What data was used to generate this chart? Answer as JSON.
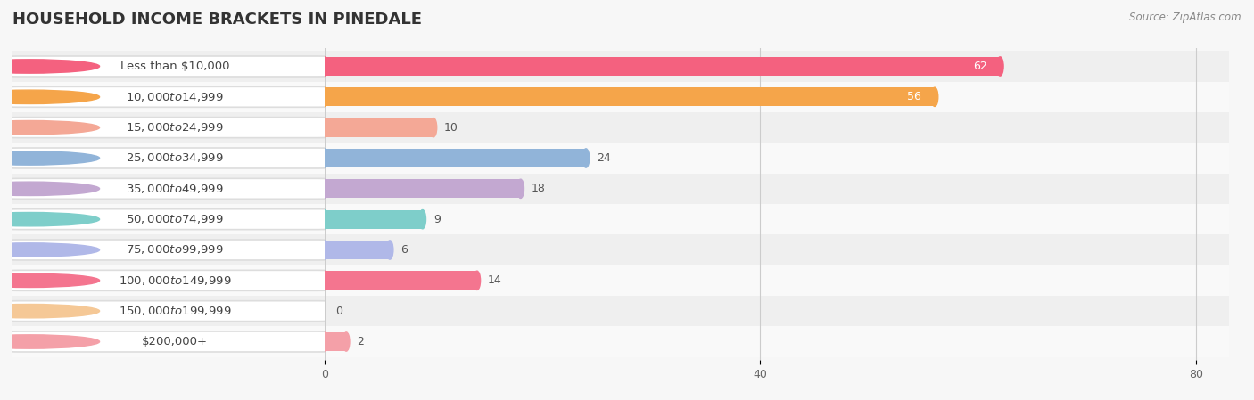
{
  "title": "HOUSEHOLD INCOME BRACKETS IN PINEDALE",
  "source": "Source: ZipAtlas.com",
  "categories": [
    "Less than $10,000",
    "$10,000 to $14,999",
    "$15,000 to $24,999",
    "$25,000 to $34,999",
    "$35,000 to $49,999",
    "$50,000 to $74,999",
    "$75,000 to $99,999",
    "$100,000 to $149,999",
    "$150,000 to $199,999",
    "$200,000+"
  ],
  "values": [
    62,
    56,
    10,
    24,
    18,
    9,
    6,
    14,
    0,
    2
  ],
  "bar_colors": [
    "#F4617F",
    "#F5A54A",
    "#F4A896",
    "#91B4D9",
    "#C3A8D1",
    "#7ECECA",
    "#B0B8E8",
    "#F4758F",
    "#F5C896",
    "#F4A0A8"
  ],
  "background_color": "#f7f7f7",
  "row_bg_even": "#efefef",
  "row_bg_odd": "#f9f9f9",
  "xlim": [
    0,
    80
  ],
  "xticks": [
    0,
    40,
    80
  ],
  "title_fontsize": 13,
  "label_fontsize": 9.5,
  "value_fontsize": 9,
  "source_fontsize": 8.5
}
